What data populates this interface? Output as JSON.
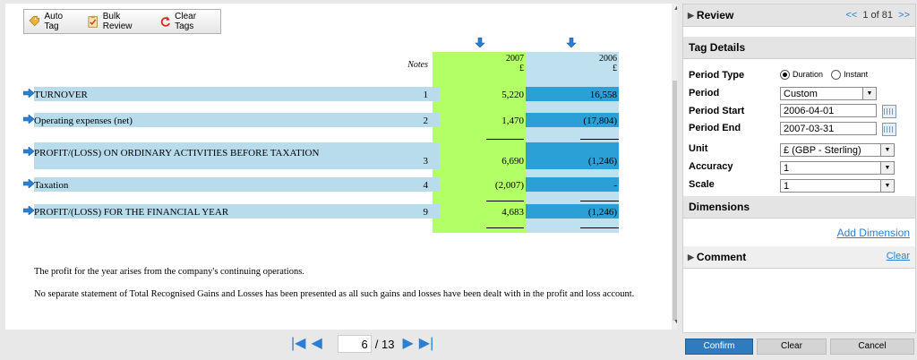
{
  "toolbar": {
    "auto_tag": "Auto Tag",
    "bulk_review": "Bulk Review",
    "clear_tags": "Clear Tags"
  },
  "statement": {
    "notes_header": "Notes",
    "year_2007": "2007",
    "year_2006": "2006",
    "currency": "£",
    "rows": [
      {
        "label": "TURNOVER",
        "note": "1",
        "v2007": "5,220",
        "v2006": "16,558"
      },
      {
        "label": "Operating expenses (net)",
        "note": "2",
        "v2007": "1,470",
        "v2006": "(17,804)"
      },
      {
        "label": "PROFIT/(LOSS) ON ORDINARY ACTIVITIES BEFORE TAXATION",
        "note": "3",
        "v2007": "6,690",
        "v2006": "(1,246)"
      },
      {
        "label": "Taxation",
        "note": "4",
        "v2007": "(2,007)",
        "v2006": "-"
      },
      {
        "label": "PROFIT/(LOSS) FOR THE FINANCIAL YEAR",
        "note": "9",
        "v2007": "4,683",
        "v2006": "(1,246)"
      }
    ],
    "para1": "The profit for the year arises from the company's continuing operations.",
    "para2": "No separate statement of Total Recognised Gains and Losses has been presented as all such gains and losses have been dealt with in the profit and loss account."
  },
  "pager": {
    "current_page": "6",
    "total": "/ 13"
  },
  "review": {
    "title": "Review",
    "prev": "<<",
    "position": "1 of 81",
    "next": ">>"
  },
  "tag_details": {
    "title": "Tag Details",
    "period_type_label": "Period Type",
    "duration_label": "Duration",
    "instant_label": "Instant",
    "period_type_selected": "Duration",
    "period_label": "Period",
    "period_value": "Custom",
    "period_start_label": "Period Start",
    "period_start_value": "2006-04-01",
    "period_end_label": "Period End",
    "period_end_value": "2007-03-31",
    "unit_label": "Unit",
    "unit_value": "£ (GBP - Sterling)",
    "accuracy_label": "Accuracy",
    "accuracy_value": "1",
    "scale_label": "Scale",
    "scale_value": "1"
  },
  "dimensions": {
    "title": "Dimensions",
    "add_link": "Add Dimension"
  },
  "comment": {
    "title": "Comment",
    "clear_link": "Clear"
  },
  "actions": {
    "confirm": "Confirm",
    "clear": "Clear",
    "cancel": "Cancel"
  },
  "colors": {
    "col_2007": "#b2ff66",
    "col_2006": "#bfe0ef",
    "row_highlight": "#b8dcec",
    "tagged_2006": "#2aa0d6",
    "accent": "#2a7fd4"
  }
}
